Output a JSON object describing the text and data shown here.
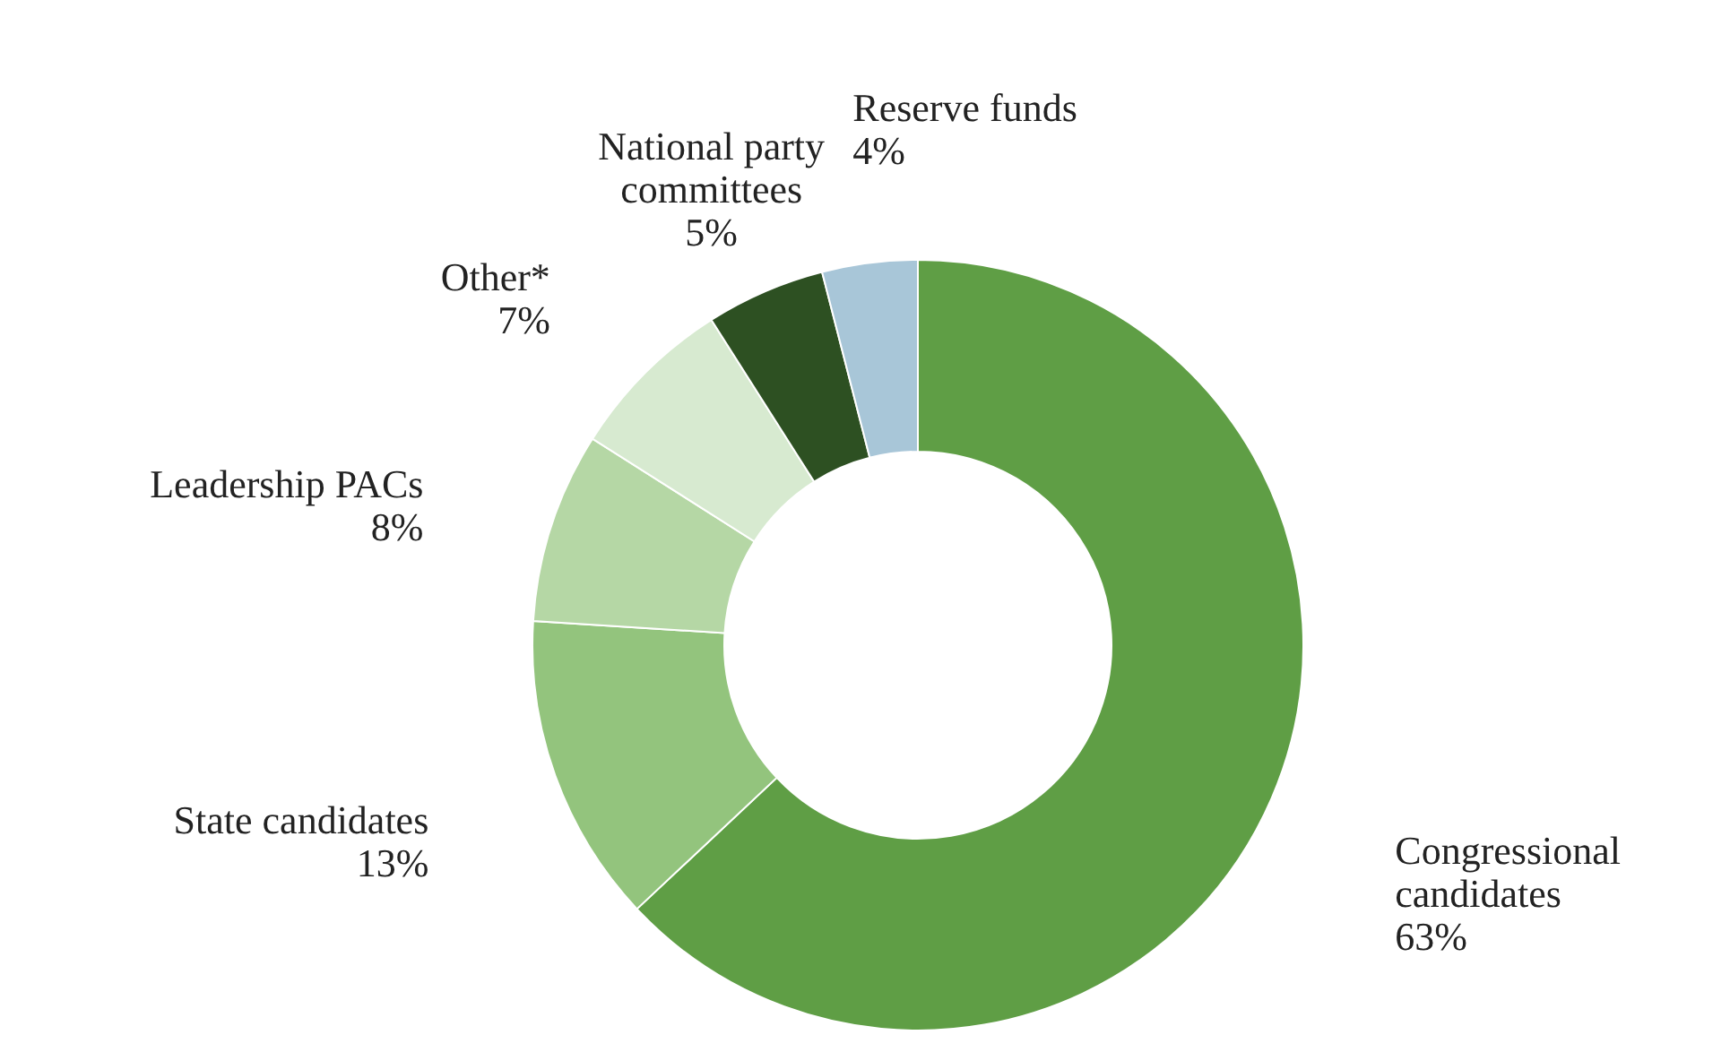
{
  "chart_data": {
    "type": "donut",
    "categories": [
      "Congressional candidates",
      "State candidates",
      "Leadership PACs",
      "Other*",
      "National party committees",
      "Reserve funds"
    ],
    "values": [
      63,
      13,
      8,
      7,
      5,
      4
    ],
    "value_labels": [
      "63%",
      "13%",
      "8%",
      "7%",
      "5%",
      "4%"
    ],
    "colors": [
      "#5f9e45",
      "#93c47d",
      "#b5d7a5",
      "#d7ead0",
      "#2d5022",
      "#a8c6d8"
    ]
  }
}
